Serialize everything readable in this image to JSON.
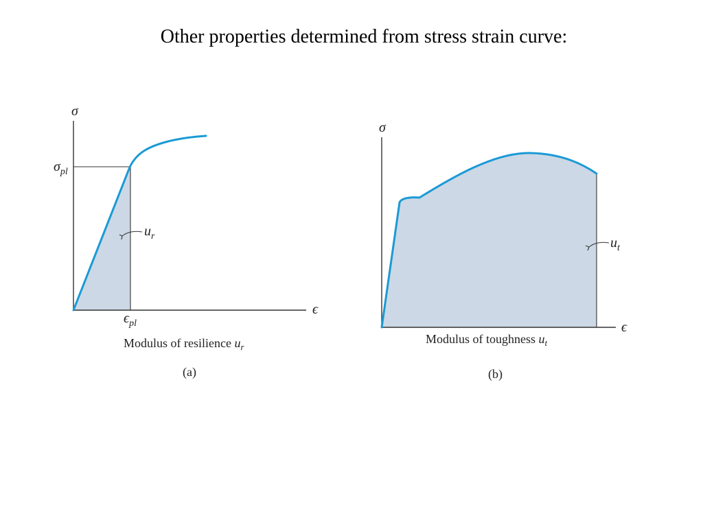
{
  "title": "Other properties determined from stress strain curve:",
  "colors": {
    "curve": "#1a9ad6",
    "area_fill": "#ccd8e5",
    "axis": "#333333"
  },
  "figure_a": {
    "y_axis_label": "σ",
    "x_axis_label": "ϵ",
    "proportional_limit_stress_label": "σ",
    "proportional_limit_stress_subscript": "pl",
    "proportional_limit_strain_label": "ϵ",
    "proportional_limit_strain_subscript": "pl",
    "area_label": "u",
    "area_label_subscript": "r",
    "caption_text": "Modulus of resilience ",
    "caption_symbol": "u",
    "caption_symbol_subscript": "r",
    "panel_label": "(a)"
  },
  "figure_b": {
    "y_axis_label": "σ",
    "x_axis_label": "ϵ",
    "area_label": "u",
    "area_label_subscript": "t",
    "caption_text": "Modulus of toughness ",
    "caption_symbol": "u",
    "caption_symbol_subscript": "t",
    "panel_label": "(b)"
  }
}
